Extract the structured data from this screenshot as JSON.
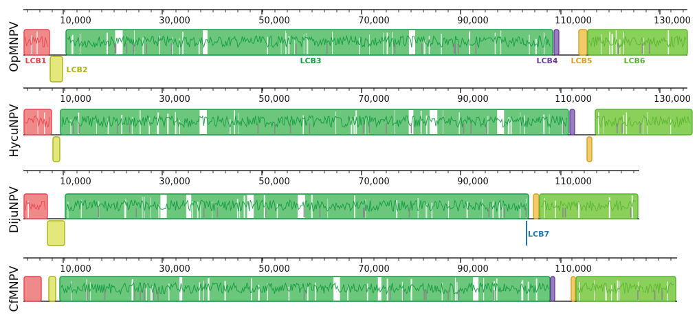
{
  "colors": {
    "LCB1": "#e8434f",
    "LCB2": "#a9b31a",
    "LCB3": "#12a144",
    "LCB4": "#6a3d9a",
    "LCB5": "#d6a020",
    "LCB6": "#58b530",
    "LCB7": "#1f78b4"
  },
  "fills": {
    "LCB1": "#f08a8a",
    "LCB2": "#e4e87a",
    "LCB3": "#6cc67c",
    "LCB4": "#9a7cc0",
    "LCB5": "#f2cc6a",
    "LCB6": "#8bd05a"
  },
  "genomes": [
    {
      "name": "OpMNPV",
      "ticks": [
        "10,000",
        "30,000",
        "50,000",
        "70,000",
        "90,000",
        "110,000",
        "130,000"
      ],
      "lcb_labels": [
        {
          "text": "LCB1",
          "lcb": "LCB1"
        },
        {
          "text": "LCB2",
          "lcb": "LCB2"
        },
        {
          "text": "LCB3",
          "lcb": "LCB3"
        },
        {
          "text": "LCB4",
          "lcb": "LCB4"
        },
        {
          "text": "LCB5",
          "lcb": "LCB5"
        },
        {
          "text": "LCB6",
          "lcb": "LCB6"
        }
      ]
    },
    {
      "name": "HycuNPV",
      "ticks": [
        "10,000",
        "30,000",
        "50,000",
        "70,000",
        "90,000",
        "110,000",
        "130,000"
      ],
      "lcb_labels": []
    },
    {
      "name": "DijuNPV",
      "ticks": [
        "10,000",
        "30,000",
        "50,000",
        "70,000",
        "90,000",
        "110,000"
      ],
      "lcb_labels": [
        {
          "text": "LCB7",
          "lcb": "LCB7"
        }
      ]
    },
    {
      "name": "CfMNPV",
      "ticks": [
        "10,000",
        "30,000",
        "50,000",
        "70,000",
        "90,000",
        "110,000"
      ],
      "lcb_labels": []
    }
  ]
}
